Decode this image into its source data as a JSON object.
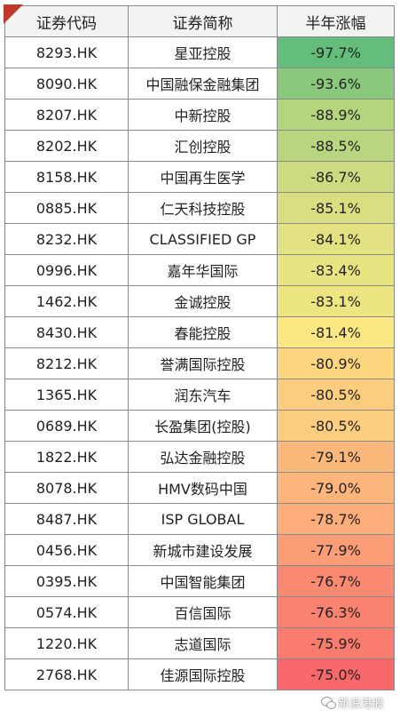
{
  "header": {
    "col_code": "证券代码",
    "col_name": "证券简称",
    "col_change": "半年涨幅"
  },
  "rows": [
    {
      "code": "8293.HK",
      "name": "星亚控股",
      "change": "-97.7%",
      "color": "#63be7b"
    },
    {
      "code": "8090.HK",
      "name": "中国融保金融集团",
      "change": "-93.6%",
      "color": "#8ac87d"
    },
    {
      "code": "8207.HK",
      "name": "中新控股",
      "change": "-88.9%",
      "color": "#b5d47e"
    },
    {
      "code": "8202.HK",
      "name": "汇创控股",
      "change": "-88.5%",
      "color": "#b9d57f"
    },
    {
      "code": "8158.HK",
      "name": "中国再生医学",
      "change": "-86.7%",
      "color": "#cadb80"
    },
    {
      "code": "0885.HK",
      "name": "仁天科技控股",
      "change": "-85.1%",
      "color": "#d9df81"
    },
    {
      "code": "8232.HK",
      "name": "CLASSIFIED GP",
      "change": "-84.1%",
      "color": "#e2e282"
    },
    {
      "code": "0996.HK",
      "name": "嘉年华国际",
      "change": "-83.4%",
      "color": "#e9e482"
    },
    {
      "code": "1462.HK",
      "name": "金诚控股",
      "change": "-83.1%",
      "color": "#ece582"
    },
    {
      "code": "8430.HK",
      "name": "春能控股",
      "change": "-81.4%",
      "color": "#fce883"
    },
    {
      "code": "8212.HK",
      "name": "誉满国际控股",
      "change": "-80.9%",
      "color": "#fdd680"
    },
    {
      "code": "1365.HK",
      "name": "润东汽车",
      "change": "-80.5%",
      "color": "#fdcd7f"
    },
    {
      "code": "0689.HK",
      "name": "长盈集团(控股)",
      "change": "-80.5%",
      "color": "#fdcd7f"
    },
    {
      "code": "1822.HK",
      "name": "弘达金融控股",
      "change": "-79.1%",
      "color": "#fcb77b"
    },
    {
      "code": "8078.HK",
      "name": "HMV数码中国",
      "change": "-79.0%",
      "color": "#fcb57b"
    },
    {
      "code": "8487.HK",
      "name": "ISP GLOBAL",
      "change": "-78.7%",
      "color": "#fcad79"
    },
    {
      "code": "0456.HK",
      "name": "新城市建设发展",
      "change": "-77.9%",
      "color": "#fb9d76"
    },
    {
      "code": "0395.HK",
      "name": "中国智能集团",
      "change": "-76.7%",
      "color": "#fa8a72"
    },
    {
      "code": "0574.HK",
      "name": "百信国际",
      "change": "-76.3%",
      "color": "#f98370"
    },
    {
      "code": "1220.HK",
      "name": "志道国际",
      "change": "-75.9%",
      "color": "#f97c6e"
    },
    {
      "code": "2768.HK",
      "name": "佳源国际控股",
      "change": "-75.0%",
      "color": "#f8696b"
    }
  ],
  "watermark": {
    "text": "新浪港股",
    "icon": "wechat-icon"
  }
}
